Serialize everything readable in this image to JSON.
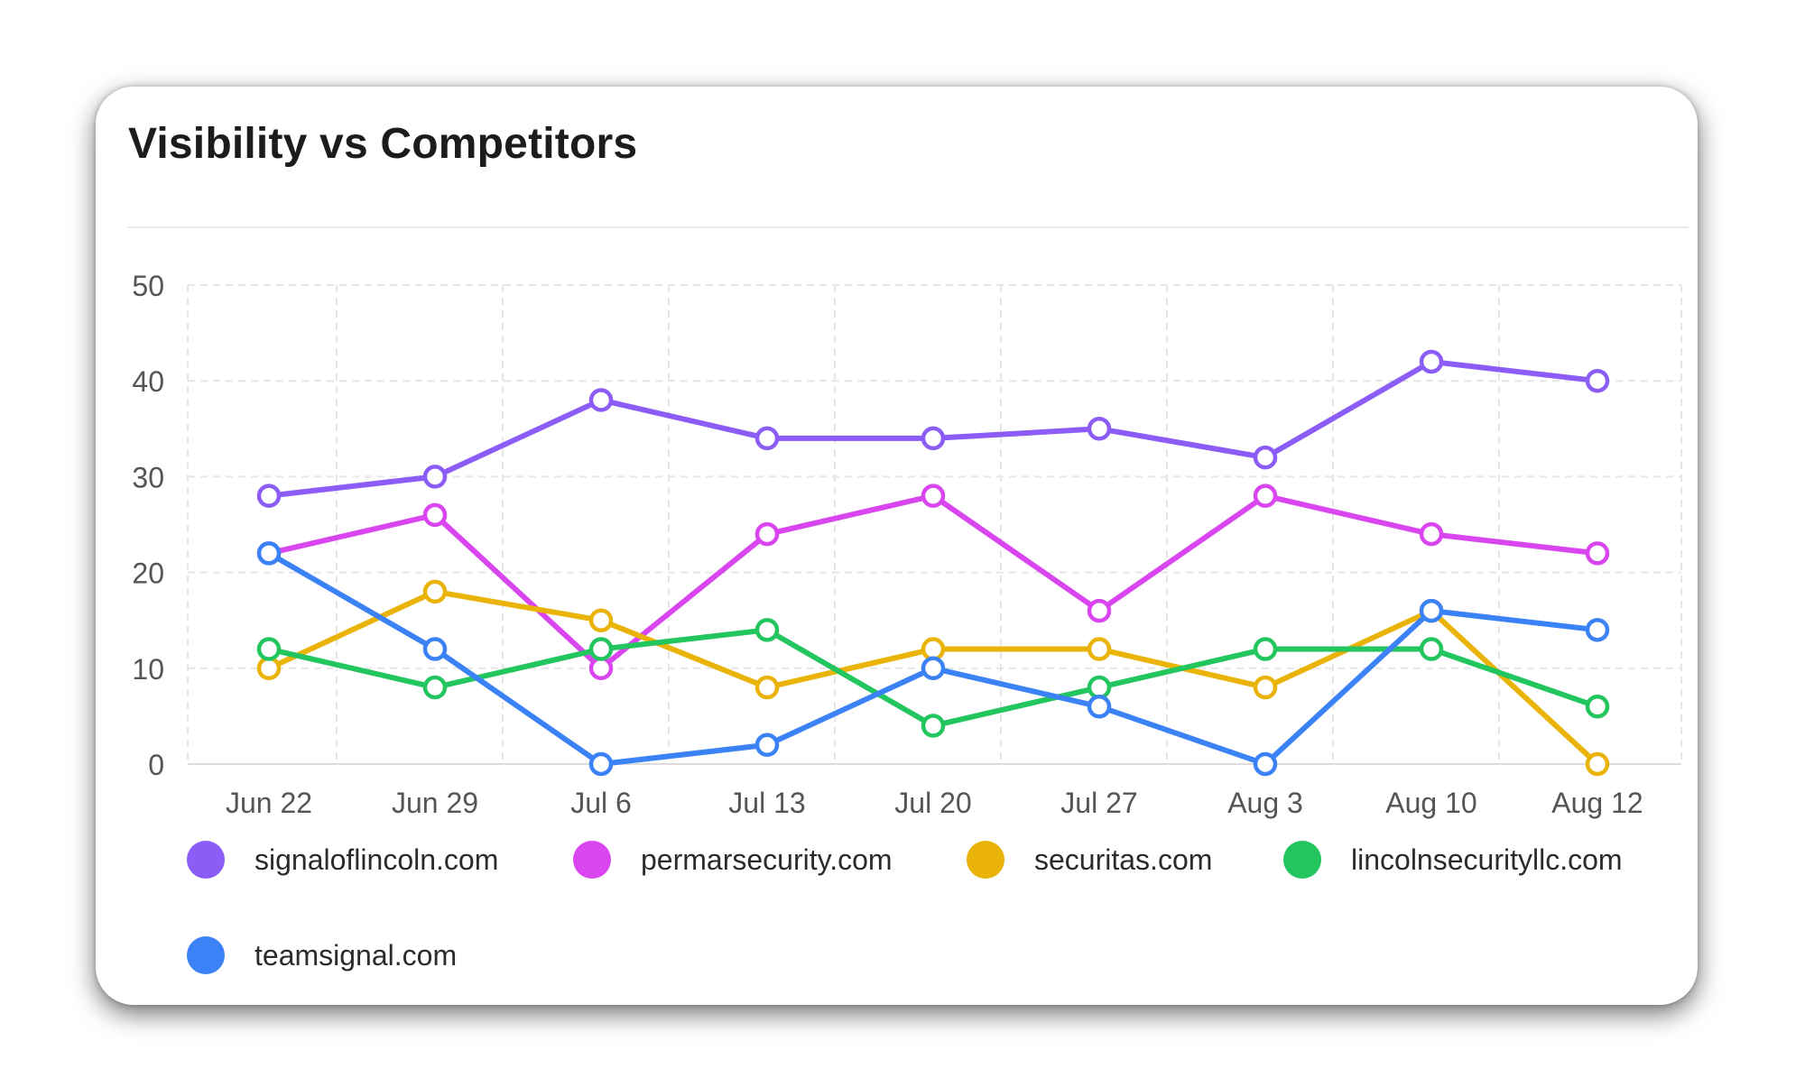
{
  "card": {
    "title": "Visibility vs Competitors"
  },
  "chart_data": {
    "type": "line",
    "title": "Visibility vs Competitors",
    "xlabel": "",
    "ylabel": "",
    "categories": [
      "Jun 22",
      "Jun 29",
      "Jul 6",
      "Jul 13",
      "Jul 20",
      "Jul 27",
      "Aug 3",
      "Aug 10",
      "Aug 12"
    ],
    "ylim": [
      0,
      50
    ],
    "yticks": [
      0,
      10,
      20,
      30,
      40,
      50
    ],
    "grid": true,
    "legend_position": "bottom",
    "series": [
      {
        "name": "signaloflincoln.com",
        "color": "#8b5cf6",
        "values": [
          28,
          30,
          38,
          34,
          34,
          35,
          32,
          42,
          40
        ]
      },
      {
        "name": "permarsecurity.com",
        "color": "#d946ef",
        "values": [
          22,
          26,
          10,
          24,
          28,
          16,
          28,
          24,
          22
        ]
      },
      {
        "name": "securitas.com",
        "color": "#eab308",
        "values": [
          10,
          18,
          15,
          8,
          12,
          12,
          8,
          16,
          0
        ]
      },
      {
        "name": "lincolnsecurityllc.com",
        "color": "#22c55e",
        "values": [
          12,
          8,
          12,
          14,
          4,
          8,
          12,
          12,
          6
        ]
      },
      {
        "name": "teamsignal.com",
        "color": "#3b82f6",
        "values": [
          22,
          12,
          0,
          2,
          10,
          6,
          0,
          16,
          14
        ]
      }
    ]
  }
}
